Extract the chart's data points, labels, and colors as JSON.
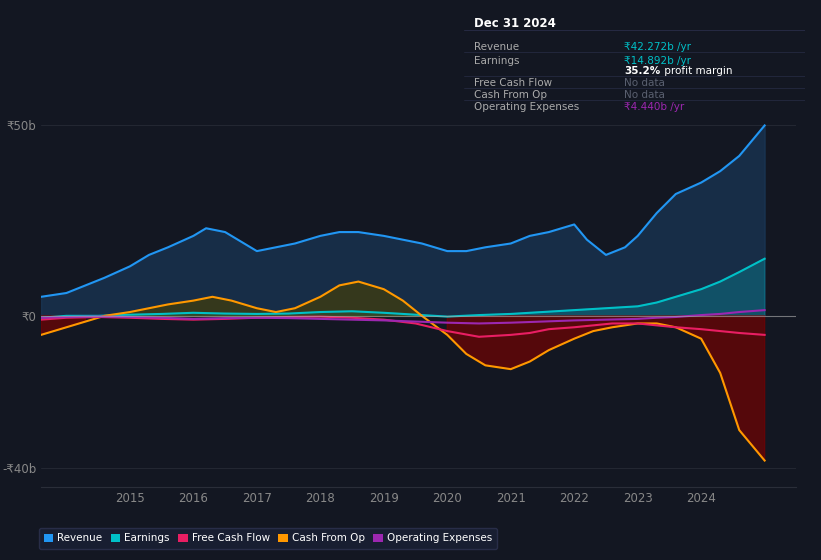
{
  "bg_color": "#131722",
  "plot_bg_color": "#131722",
  "title": "Dec 31 2024",
  "info_box_bg": "#1a2035",
  "info_box_border": "#2d3250",
  "ylim": [
    -45,
    55
  ],
  "yticks": [
    -40,
    0,
    50
  ],
  "ytick_labels": [
    "-₹40b",
    "₹0",
    "₹50b"
  ],
  "xlim_start": 2013.6,
  "xlim_end": 2025.5,
  "xticks": [
    2015,
    2016,
    2017,
    2018,
    2019,
    2020,
    2021,
    2022,
    2023,
    2024
  ],
  "grid_color": "#2a2e39",
  "zero_line_color": "#aaaaaa",
  "revenue": {
    "x": [
      2013.6,
      2014.0,
      2014.3,
      2014.6,
      2015.0,
      2015.3,
      2015.6,
      2016.0,
      2016.2,
      2016.5,
      2016.8,
      2017.0,
      2017.3,
      2017.6,
      2018.0,
      2018.3,
      2018.6,
      2019.0,
      2019.3,
      2019.6,
      2020.0,
      2020.3,
      2020.6,
      2021.0,
      2021.3,
      2021.6,
      2022.0,
      2022.2,
      2022.5,
      2022.8,
      2023.0,
      2023.3,
      2023.6,
      2024.0,
      2024.3,
      2024.6,
      2025.0
    ],
    "y": [
      5,
      6,
      8,
      10,
      13,
      16,
      18,
      21,
      23,
      22,
      19,
      17,
      18,
      19,
      21,
      22,
      22,
      21,
      20,
      19,
      17,
      17,
      18,
      19,
      21,
      22,
      24,
      20,
      16,
      18,
      21,
      27,
      32,
      35,
      38,
      42,
      50
    ],
    "color": "#2196f3",
    "fill_color": "#1a3a5c",
    "linewidth": 1.5
  },
  "earnings": {
    "x": [
      2013.6,
      2014.0,
      2014.5,
      2015.0,
      2015.5,
      2016.0,
      2016.5,
      2017.0,
      2017.5,
      2018.0,
      2018.5,
      2019.0,
      2019.5,
      2020.0,
      2020.5,
      2021.0,
      2021.5,
      2022.0,
      2022.5,
      2023.0,
      2023.3,
      2023.6,
      2024.0,
      2024.3,
      2024.6,
      2025.0
    ],
    "y": [
      -0.5,
      0,
      0,
      0.3,
      0.5,
      0.8,
      0.6,
      0.5,
      0.6,
      1.0,
      1.2,
      0.8,
      0.3,
      -0.2,
      0.2,
      0.5,
      1.0,
      1.5,
      2.0,
      2.5,
      3.5,
      5.0,
      7.0,
      9.0,
      11.5,
      15
    ],
    "color": "#00c0c7",
    "linewidth": 1.5
  },
  "free_cash_flow": {
    "x": [
      2013.6,
      2014.0,
      2014.5,
      2015.0,
      2015.5,
      2016.0,
      2016.5,
      2017.0,
      2017.5,
      2018.0,
      2018.5,
      2019.0,
      2019.5,
      2020.0,
      2020.5,
      2021.0,
      2021.3,
      2021.6,
      2022.0,
      2022.3,
      2022.6,
      2023.0,
      2023.3,
      2023.6,
      2024.0,
      2024.3,
      2024.6,
      2025.0
    ],
    "y": [
      -1,
      -0.5,
      -0.3,
      -0.5,
      -0.8,
      -1.0,
      -0.8,
      -0.5,
      -0.3,
      -0.2,
      -0.5,
      -1.0,
      -2.0,
      -4.0,
      -5.5,
      -5.0,
      -4.5,
      -3.5,
      -3.0,
      -2.5,
      -2.0,
      -2.0,
      -2.5,
      -3.0,
      -3.5,
      -4.0,
      -4.5,
      -5.0
    ],
    "color": "#e91e63",
    "linewidth": 1.5
  },
  "cash_from_op": {
    "x": [
      2013.6,
      2014.0,
      2014.3,
      2014.6,
      2015.0,
      2015.3,
      2015.6,
      2016.0,
      2016.3,
      2016.6,
      2017.0,
      2017.3,
      2017.6,
      2018.0,
      2018.3,
      2018.6,
      2019.0,
      2019.3,
      2019.6,
      2020.0,
      2020.3,
      2020.6,
      2021.0,
      2021.3,
      2021.6,
      2022.0,
      2022.3,
      2022.6,
      2023.0,
      2023.3,
      2023.6,
      2024.0,
      2024.3,
      2024.6,
      2025.0
    ],
    "y": [
      -5,
      -3,
      -1.5,
      0,
      1,
      2,
      3,
      4,
      5,
      4,
      2,
      1,
      2,
      5,
      8,
      9,
      7,
      4,
      0,
      -5,
      -10,
      -13,
      -14,
      -12,
      -9,
      -6,
      -4,
      -3,
      -2,
      -2,
      -3,
      -6,
      -15,
      -30,
      -38
    ],
    "color": "#ff9800",
    "linewidth": 1.5
  },
  "operating_expenses": {
    "x": [
      2013.6,
      2014.0,
      2014.5,
      2015.0,
      2015.5,
      2016.0,
      2016.5,
      2017.0,
      2017.5,
      2018.0,
      2018.5,
      2019.0,
      2019.5,
      2020.0,
      2020.5,
      2021.0,
      2021.5,
      2022.0,
      2022.5,
      2023.0,
      2023.3,
      2023.6,
      2024.0,
      2024.3,
      2024.6,
      2025.0
    ],
    "y": [
      -0.5,
      -0.3,
      -0.2,
      -0.3,
      -0.5,
      -0.8,
      -0.6,
      -0.5,
      -0.6,
      -0.8,
      -1.0,
      -1.2,
      -1.5,
      -1.8,
      -2.0,
      -1.8,
      -1.5,
      -1.2,
      -1.0,
      -0.8,
      -0.5,
      -0.3,
      0.2,
      0.5,
      1.0,
      1.5
    ],
    "color": "#9c27b0",
    "linewidth": 1.5
  },
  "legend": [
    {
      "label": "Revenue",
      "color": "#2196f3"
    },
    {
      "label": "Earnings",
      "color": "#00c0c7"
    },
    {
      "label": "Free Cash Flow",
      "color": "#e91e63"
    },
    {
      "label": "Cash From Op",
      "color": "#ff9800"
    },
    {
      "label": "Operating Expenses",
      "color": "#9c27b0"
    }
  ]
}
